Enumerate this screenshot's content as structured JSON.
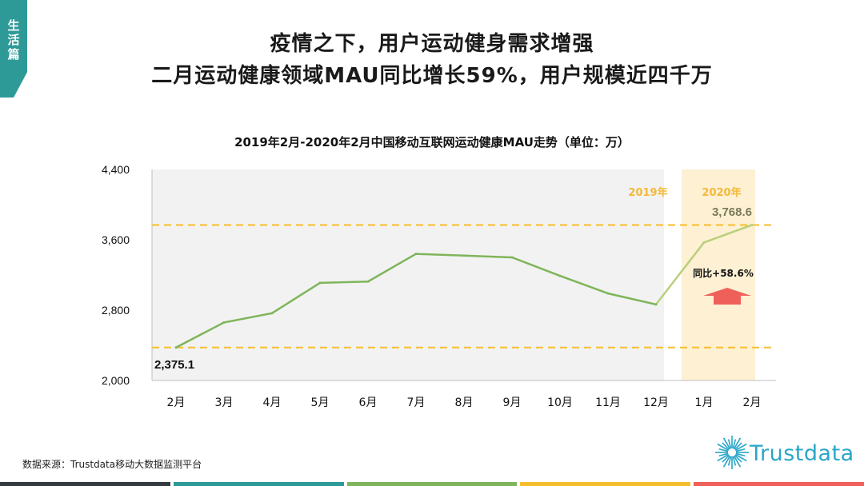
{
  "section_tab": "生\n活\n篇",
  "headline": {
    "line1": "疫情之下，用户运动健身需求增强",
    "line2": "二月运动健康领域MAU同比增长59%，用户规模近四千万"
  },
  "source_note": "数据来源：Trustdata移动大数据监测平台",
  "logo_text": "Trustdata",
  "colors": {
    "tab": "#2e9a98",
    "line": "#7fb55a",
    "line_2020": "#b9cf7c",
    "dashed": "#f6bd2f",
    "bg_2019": "#f2f2f2",
    "bg_2020": "#fdf0d3",
    "year_label": "#f4b93a",
    "arrow": "#f0605a",
    "logo": "#2aa6c8",
    "bottom_bar": [
      "#343a40",
      "#2e9a98",
      "#7fb55a",
      "#f6bd2f",
      "#f0605a"
    ]
  },
  "chart_data": {
    "type": "line",
    "title": "2019年2月-2020年2月中国移动互联网运动健康MAU走势（单位：万）",
    "categories": [
      "2月",
      "3月",
      "4月",
      "5月",
      "6月",
      "7月",
      "8月",
      "9月",
      "10月",
      "11月",
      "12月",
      "1月",
      "2月"
    ],
    "series": [
      {
        "values": [
          2375.1,
          2660,
          2765,
          3110,
          3125,
          3440,
          3420,
          3400,
          3190,
          2990,
          2865,
          3570,
          3768.6
        ]
      }
    ],
    "ylim": [
      2000,
      4400
    ],
    "yticks": [
      2000,
      2800,
      3600,
      4400
    ],
    "ytick_labels": [
      "2,000",
      "2,800",
      "3,600",
      "4,400"
    ],
    "reference_lines": [
      3768.6,
      2375.1
    ],
    "period_labels": [
      "2019年",
      "2020年"
    ],
    "highlight_2020_from_index": 11,
    "annotations": {
      "start_value": "2,375.1",
      "end_value": "3,768.6",
      "growth": "同比+58.6%"
    },
    "grid": false
  }
}
